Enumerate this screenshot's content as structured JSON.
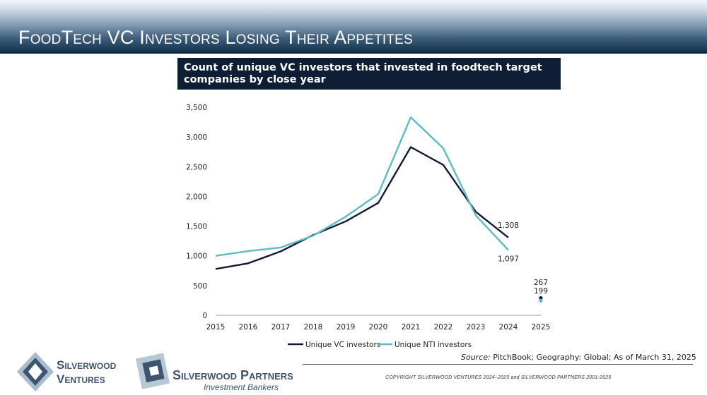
{
  "page": {
    "title": "FoodTech VC Investors Losing Their Appetites",
    "chart_title": "Count of unique VC investors that invested in foodtech target companies by close year",
    "source_label": "Source:",
    "source_text": "PitchBook; Geography: Global; As of March 31, 2025",
    "copyright": "COPYRIGHT SILVERWOOD VENTURES 2024–2025 and SILVERWOOD PARTNERS 2001-2025"
  },
  "logos": {
    "ventures_line1": "Silverwood",
    "ventures_line2": "Ventures",
    "partners_name": "Silverwood Partners",
    "partners_sub": "Investment Bankers"
  },
  "colors": {
    "vc": "#101a36",
    "nti": "#5bbcc3"
  },
  "chart_data": {
    "type": "line",
    "title": "Count of unique VC investors that invested in foodtech target companies by close year",
    "xlabel": "",
    "ylabel": "",
    "x": [
      2015,
      2016,
      2017,
      2018,
      2019,
      2020,
      2021,
      2022,
      2023,
      2024,
      2025
    ],
    "ylim": [
      0,
      3500
    ],
    "yticks": [
      0,
      500,
      1000,
      1500,
      2000,
      2500,
      3000,
      3500
    ],
    "ytick_labels": [
      "0",
      "500",
      "1,000",
      "1,500",
      "2,000",
      "2,500",
      "3,000",
      "3,500"
    ],
    "grid": false,
    "legend": "bottom",
    "series": [
      {
        "name": "Unique VC investors",
        "values": [
          780,
          875,
          1075,
          1350,
          1580,
          1890,
          2830,
          2530,
          1740,
          1308,
          null
        ],
        "partial": {
          "x": 2025,
          "value": 267
        }
      },
      {
        "name": "Unique NTI investors",
        "values": [
          1000,
          1080,
          1140,
          1340,
          1660,
          2040,
          3330,
          2810,
          1680,
          1097,
          null
        ],
        "partial": {
          "x": 2025,
          "value": 199
        }
      }
    ],
    "annotations": [
      {
        "text": "1,308",
        "x": 2024,
        "series": 0
      },
      {
        "text": "1,097",
        "x": 2024,
        "series": 1
      },
      {
        "text": "267",
        "x": 2025,
        "series": 0
      },
      {
        "text": "199",
        "x": 2025,
        "series": 1
      }
    ]
  }
}
